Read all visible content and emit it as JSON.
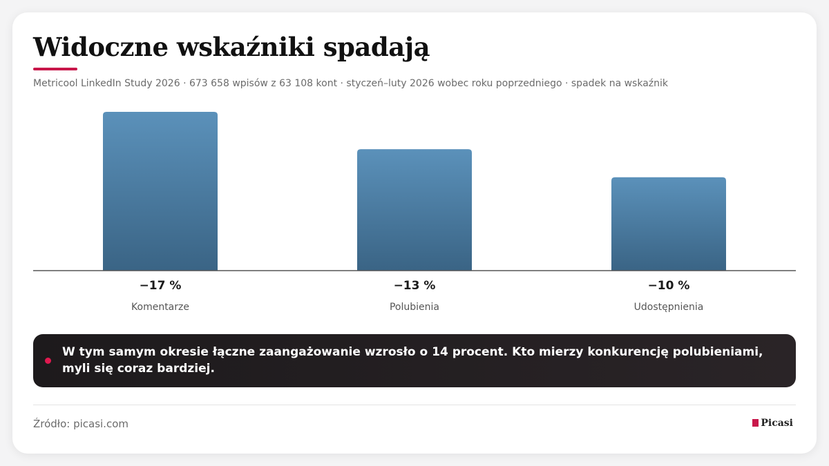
{
  "chart_data": {
    "type": "bar",
    "title": "Widoczne wskaźniki spadają",
    "subtitle": "Metricool LinkedIn Study 2026 · 673 658 wpisów z 63 108 kont · styczeń–luty 2026 wobec roku poprzedniego · spadek na wskaźnik",
    "categories": [
      "Komentarze",
      "Polubienia",
      "Udostępnienia"
    ],
    "values": [
      -17,
      -13,
      -10
    ],
    "value_labels": [
      "−17 %",
      "−13 %",
      "−10 %"
    ],
    "ylim": [
      0,
      -17
    ],
    "color": "#4a7ba3",
    "note": "W tym samym okresie łączne zaangażowanie wzrosło o 14 procent. Kto mierzy konkurencję polubieniami, myli się coraz bardziej.",
    "source": "Źródło: picasi.com",
    "brand": "Picasi"
  }
}
